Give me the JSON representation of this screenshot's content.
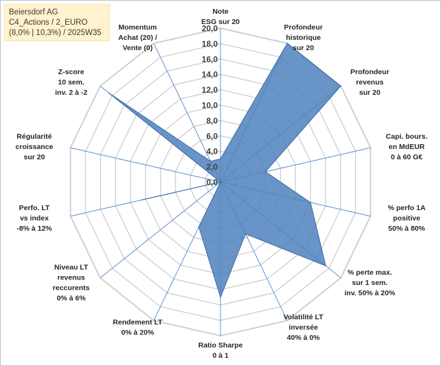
{
  "title_box": {
    "line1": "Beiersdorf AG",
    "line2": "C4_Actions / 2_EURO",
    "line3": "(8,0% | 10,3%) / 2025W35",
    "background": "#fff2cc"
  },
  "chart_data": {
    "type": "radar",
    "rmin": 0,
    "rmax": 20,
    "ticks": [
      "0,0",
      "2,0",
      "4,0",
      "6,0",
      "8,0",
      "10,0",
      "12,0",
      "14,0",
      "16,0",
      "18,0",
      "20,0"
    ],
    "grid": true,
    "colors": {
      "fill": "#4f81bd",
      "stroke": "#3d6aa3",
      "grid": "#d0d0d0",
      "spoke": "#5b8fd0"
    },
    "axes": [
      {
        "lines": [
          "Note",
          "ESG sur 20"
        ],
        "value": 3.0
      },
      {
        "lines": [
          "Profondeur",
          "historique",
          "sur 20"
        ],
        "value": 20.0
      },
      {
        "lines": [
          "Profondeur",
          "revenus",
          "sur 20"
        ],
        "value": 20.0
      },
      {
        "lines": [
          "Capi. bours.",
          "en MdEUR",
          "0 à 60 G€"
        ],
        "value": 6.0
      },
      {
        "lines": [
          "% perfo 1A",
          "positive",
          "50% à 80%"
        ],
        "value": 12.0
      },
      {
        "lines": [
          "% perte max.",
          "sur 1 sem.",
          "inv. 50% à 20%"
        ],
        "value": 17.5
      },
      {
        "lines": [
          "Volatilité LT",
          "inversée",
          "40% à 0%"
        ],
        "value": 7.5
      },
      {
        "lines": [
          "Ratio Sharpe",
          "0 à 1"
        ],
        "value": 15.0
      },
      {
        "lines": [
          "Rendement LT",
          "0% à 20%"
        ],
        "value": 6.5
      },
      {
        "lines": [
          "Niveau LT",
          "revenus",
          "reccurents",
          "0% à 6%"
        ],
        "value": 0.0
      },
      {
        "lines": [
          "Perfo. LT",
          "vs index",
          "-8% à 12%"
        ],
        "value": 10.5
      },
      {
        "lines": [
          "Régularité",
          "croissance",
          "sur 20"
        ],
        "value": 0.0
      },
      {
        "lines": [
          "Z-score",
          "10 sem.",
          "inv. 2 à -2"
        ],
        "value": 18.5
      },
      {
        "lines": [
          "Momentum",
          "Achat (20) /",
          "Vente (0)"
        ],
        "value": 3.0
      }
    ]
  }
}
